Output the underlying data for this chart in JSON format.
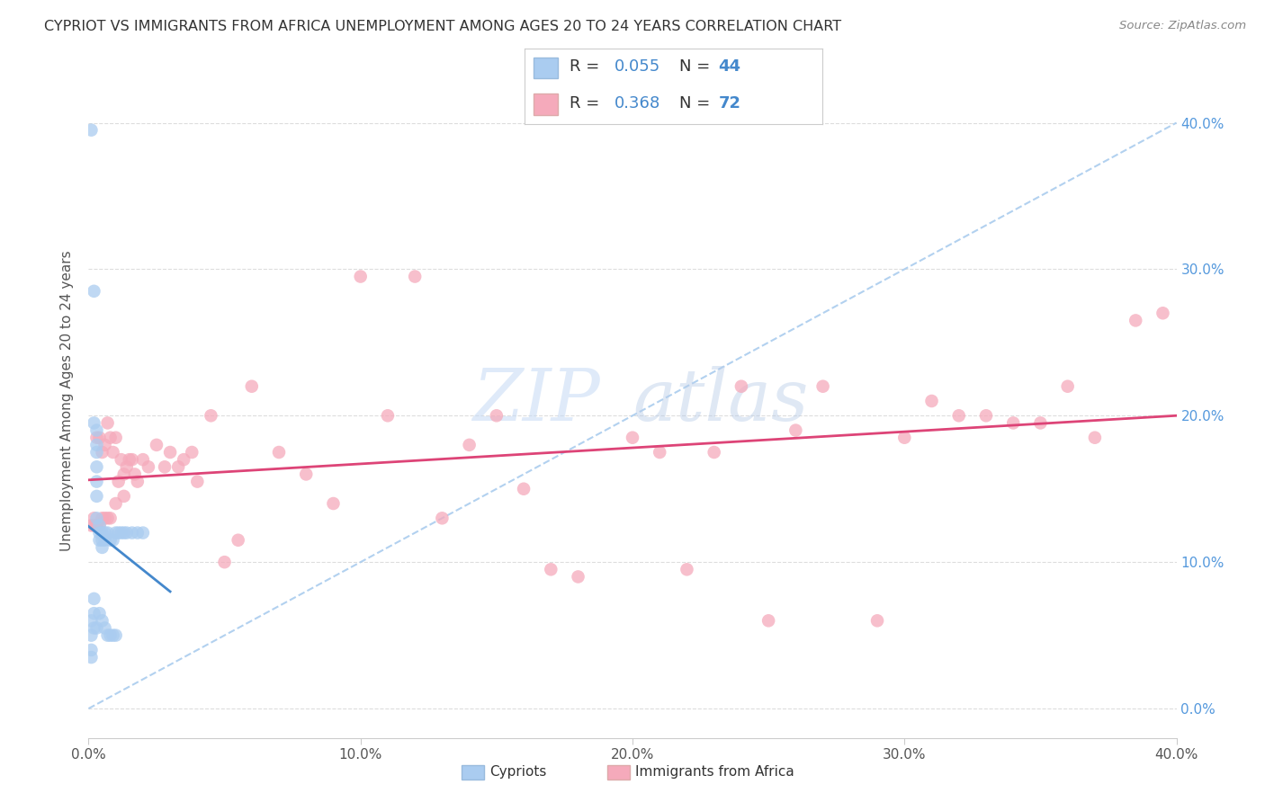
{
  "title": "CYPRIOT VS IMMIGRANTS FROM AFRICA UNEMPLOYMENT AMONG AGES 20 TO 24 YEARS CORRELATION CHART",
  "source": "Source: ZipAtlas.com",
  "ylabel": "Unemployment Among Ages 20 to 24 years",
  "watermark_zip": "ZIP",
  "watermark_atlas": "atlas",
  "cypriot_R": 0.055,
  "cypriot_N": 44,
  "africa_R": 0.368,
  "africa_N": 72,
  "cypriot_color": "#aaccf0",
  "africa_color": "#f5aabb",
  "trendline_cypriot_color": "#4488cc",
  "trendline_africa_color": "#dd4477",
  "ref_line_color": "#aaccee",
  "xmin": 0.0,
  "xmax": 0.4,
  "ymin": -0.02,
  "ymax": 0.44,
  "yticks": [
    0.0,
    0.1,
    0.2,
    0.3,
    0.4
  ],
  "xticks": [
    0.0,
    0.1,
    0.2,
    0.3,
    0.4
  ],
  "cypriot_x": [
    0.001,
    0.001,
    0.001,
    0.001,
    0.001,
    0.002,
    0.002,
    0.002,
    0.002,
    0.002,
    0.003,
    0.003,
    0.003,
    0.003,
    0.003,
    0.003,
    0.003,
    0.003,
    0.004,
    0.004,
    0.004,
    0.004,
    0.005,
    0.005,
    0.005,
    0.005,
    0.006,
    0.006,
    0.006,
    0.007,
    0.007,
    0.008,
    0.008,
    0.009,
    0.009,
    0.01,
    0.01,
    0.011,
    0.012,
    0.013,
    0.014,
    0.016,
    0.018,
    0.02
  ],
  "cypriot_y": [
    0.395,
    0.06,
    0.05,
    0.04,
    0.035,
    0.285,
    0.195,
    0.075,
    0.065,
    0.055,
    0.19,
    0.18,
    0.175,
    0.165,
    0.155,
    0.145,
    0.13,
    0.055,
    0.125,
    0.12,
    0.115,
    0.065,
    0.12,
    0.115,
    0.11,
    0.06,
    0.12,
    0.115,
    0.055,
    0.12,
    0.05,
    0.115,
    0.05,
    0.115,
    0.05,
    0.12,
    0.05,
    0.12,
    0.12,
    0.12,
    0.12,
    0.12,
    0.12,
    0.12
  ],
  "africa_x": [
    0.001,
    0.002,
    0.002,
    0.003,
    0.003,
    0.003,
    0.004,
    0.004,
    0.005,
    0.005,
    0.006,
    0.006,
    0.007,
    0.007,
    0.008,
    0.008,
    0.009,
    0.01,
    0.01,
    0.011,
    0.012,
    0.013,
    0.013,
    0.014,
    0.015,
    0.016,
    0.017,
    0.018,
    0.02,
    0.022,
    0.025,
    0.028,
    0.03,
    0.033,
    0.035,
    0.038,
    0.04,
    0.045,
    0.05,
    0.055,
    0.06,
    0.07,
    0.08,
    0.09,
    0.1,
    0.11,
    0.12,
    0.13,
    0.14,
    0.15,
    0.16,
    0.17,
    0.18,
    0.2,
    0.21,
    0.22,
    0.23,
    0.24,
    0.25,
    0.26,
    0.27,
    0.29,
    0.3,
    0.31,
    0.32,
    0.33,
    0.34,
    0.35,
    0.36,
    0.37,
    0.385,
    0.395
  ],
  "africa_y": [
    0.125,
    0.13,
    0.125,
    0.125,
    0.185,
    0.125,
    0.185,
    0.125,
    0.13,
    0.175,
    0.18,
    0.13,
    0.195,
    0.13,
    0.185,
    0.13,
    0.175,
    0.14,
    0.185,
    0.155,
    0.17,
    0.16,
    0.145,
    0.165,
    0.17,
    0.17,
    0.16,
    0.155,
    0.17,
    0.165,
    0.18,
    0.165,
    0.175,
    0.165,
    0.17,
    0.175,
    0.155,
    0.2,
    0.1,
    0.115,
    0.22,
    0.175,
    0.16,
    0.14,
    0.295,
    0.2,
    0.295,
    0.13,
    0.18,
    0.2,
    0.15,
    0.095,
    0.09,
    0.185,
    0.175,
    0.095,
    0.175,
    0.22,
    0.06,
    0.19,
    0.22,
    0.06,
    0.185,
    0.21,
    0.2,
    0.2,
    0.195,
    0.195,
    0.22,
    0.185,
    0.265,
    0.27
  ]
}
